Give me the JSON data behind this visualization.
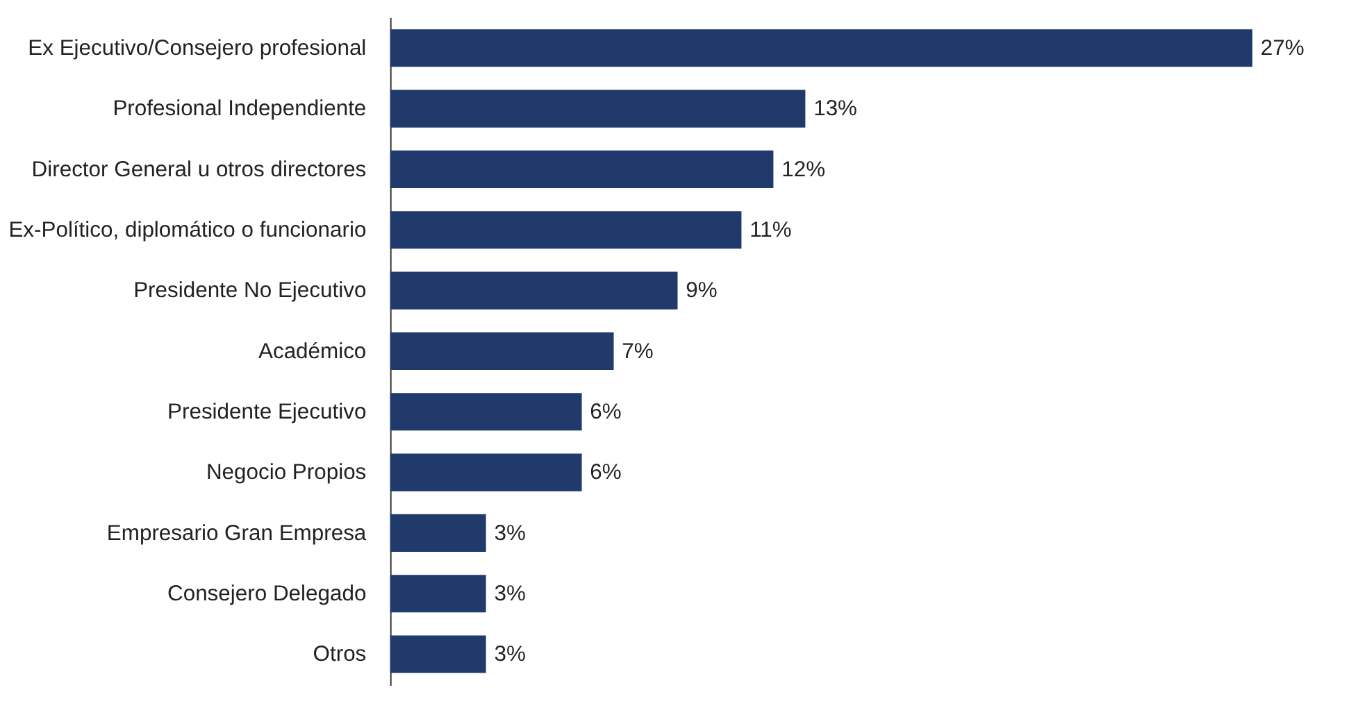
{
  "chart_data": {
    "type": "bar",
    "orientation": "horizontal",
    "categories": [
      "Ex Ejecutivo/Consejero profesional",
      "Profesional Independiente",
      "Director General u otros directores",
      "Ex-Político, diplomático o funcionario",
      "Presidente No Ejecutivo",
      "Académico",
      "Presidente Ejecutivo",
      "Negocio Propios",
      "Empresario Gran Empresa",
      "Consejero Delegado",
      "Otros"
    ],
    "values": [
      27,
      13,
      12,
      11,
      9,
      7,
      6,
      6,
      3,
      3,
      3
    ],
    "value_labels": [
      "27%",
      "13%",
      "12%",
      "11%",
      "9%",
      "7%",
      "6%",
      "6%",
      "3%",
      "3%",
      "3%"
    ],
    "color": "#1f3a6b",
    "tick_labels": "y"
  }
}
